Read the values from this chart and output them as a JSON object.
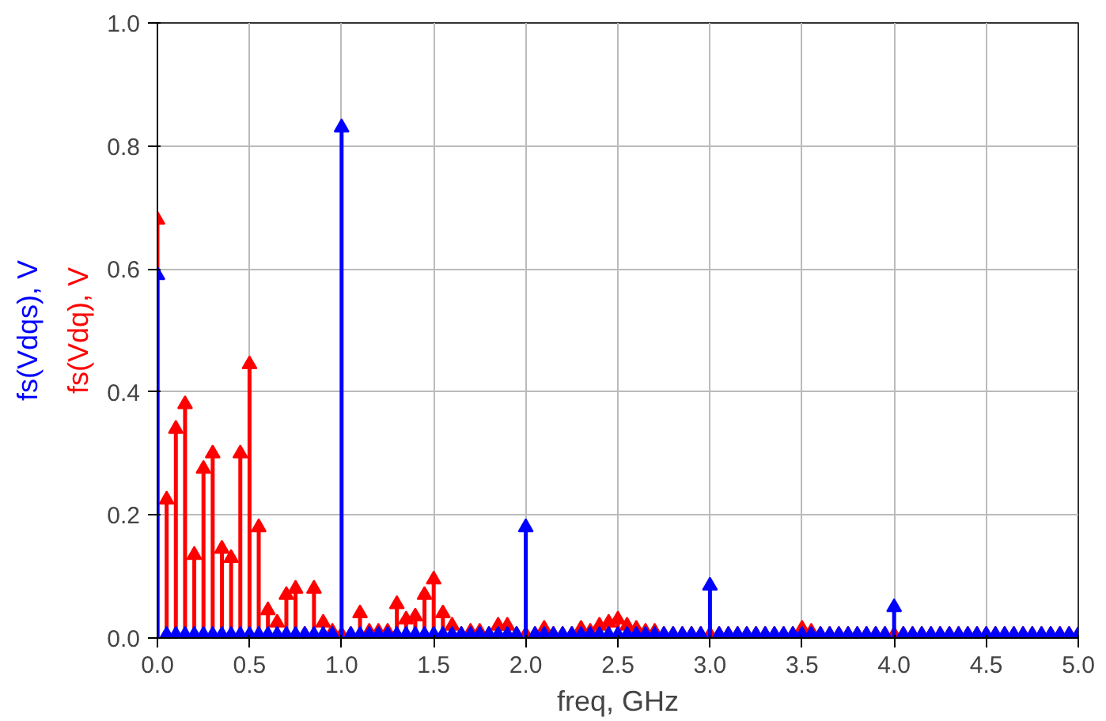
{
  "chart_data": {
    "type": "lollipop",
    "xlabel": "freq, GHz",
    "grid": true,
    "legend": false,
    "marker": "triangle",
    "xlim": [
      0,
      5
    ],
    "ylim": [
      0,
      1
    ],
    "xticks": [
      {
        "value": 0,
        "label": "0.0"
      },
      0.5,
      {
        "value": 1,
        "label": "1.0"
      },
      1.5,
      {
        "value": 2,
        "label": "2.0"
      },
      2.5,
      {
        "value": 3,
        "label": "3.0"
      },
      3.5,
      {
        "value": 4,
        "label": "4.0"
      },
      4.5,
      {
        "value": 5,
        "label": "5.0"
      }
    ],
    "yticks": [
      {
        "value": 0,
        "label": "0.0"
      },
      0.2,
      0.4,
      0.6,
      0.8,
      {
        "value": 1,
        "label": "1.0"
      }
    ],
    "x": [
      0,
      0.05,
      0.1,
      0.15,
      0.2,
      0.25,
      0.3,
      0.35,
      0.4,
      0.45,
      0.5,
      0.55,
      0.6,
      0.65,
      0.7,
      0.75,
      0.8,
      0.85,
      0.9,
      0.95,
      1,
      1.05,
      1.1,
      1.15,
      1.2,
      1.25,
      1.3,
      1.35,
      1.4,
      1.45,
      1.5,
      1.55,
      1.6,
      1.65,
      1.7,
      1.75,
      1.8,
      1.85,
      1.9,
      1.95,
      2,
      2.05,
      2.1,
      2.15,
      2.2,
      2.25,
      2.3,
      2.35,
      2.4,
      2.45,
      2.5,
      2.55,
      2.6,
      2.65,
      2.7,
      2.75,
      2.8,
      2.85,
      2.9,
      2.95,
      3,
      3.05,
      3.1,
      3.15,
      3.2,
      3.25,
      3.3,
      3.35,
      3.4,
      3.45,
      3.5,
      3.55,
      3.6,
      3.65,
      3.7,
      3.75,
      3.8,
      3.85,
      3.9,
      3.95,
      4,
      4.05,
      4.1,
      4.15,
      4.2,
      4.25,
      4.3,
      4.35,
      4.4,
      4.45,
      4.5,
      4.55,
      4.6,
      4.65,
      4.7,
      4.75,
      4.8,
      4.85,
      4.9,
      4.95,
      5
    ],
    "series": [
      {
        "name": "fs(Vdq), V",
        "color": "#ff0000",
        "values": [
          0.68,
          0.225,
          0.34,
          0.38,
          0.135,
          0.275,
          0.3,
          0.145,
          0.13,
          0.3,
          0.445,
          0.18,
          0.045,
          0.025,
          0.07,
          0.08,
          0.005,
          0.08,
          0.025,
          0.01,
          0.005,
          0.005,
          0.04,
          0.01,
          0.01,
          0.01,
          0.055,
          0.03,
          0.035,
          0.07,
          0.095,
          0.04,
          0.02,
          0.005,
          0.01,
          0.01,
          0.005,
          0.02,
          0.02,
          0.005,
          0.005,
          0.005,
          0.015,
          0.005,
          0.005,
          0.005,
          0.015,
          0.01,
          0.02,
          0.025,
          0.03,
          0.02,
          0.015,
          0.01,
          0.01,
          0.005,
          0.005,
          0.005,
          0.005,
          0.005,
          0.005,
          0.005,
          0.005,
          0.005,
          0.005,
          0.005,
          0.005,
          0.005,
          0.005,
          0.005,
          0.015,
          0.01,
          0.005,
          0.005,
          0.005,
          0.005,
          0.005,
          0.005,
          0.005,
          0.005,
          0.005,
          0.005,
          0.005,
          0.005,
          0.005,
          0.005,
          0.005,
          0.005,
          0.005,
          0.005,
          0.005,
          0.005,
          0.005,
          0.005,
          0.005,
          0.005,
          0.005,
          0.005,
          0.005,
          0.005,
          0.005
        ]
      },
      {
        "name": "fs(Vdqs), V",
        "color": "#0000ff",
        "values": [
          0.59,
          0.005,
          0.005,
          0.005,
          0.005,
          0.005,
          0.005,
          0.005,
          0.005,
          0.005,
          0.005,
          0.005,
          0.005,
          0.005,
          0.005,
          0.005,
          0.005,
          0.005,
          0.005,
          0.005,
          0.83,
          0.005,
          0.005,
          0.005,
          0.005,
          0.005,
          0.005,
          0.005,
          0.005,
          0.005,
          0.005,
          0.005,
          0.005,
          0.005,
          0.005,
          0.005,
          0.005,
          0.005,
          0.005,
          0.005,
          0.18,
          0.005,
          0.005,
          0.005,
          0.005,
          0.005,
          0.005,
          0.005,
          0.005,
          0.005,
          0.005,
          0.005,
          0.005,
          0.005,
          0.005,
          0.005,
          0.005,
          0.005,
          0.005,
          0.005,
          0.085,
          0.005,
          0.005,
          0.005,
          0.005,
          0.005,
          0.005,
          0.005,
          0.005,
          0.005,
          0.005,
          0.005,
          0.005,
          0.005,
          0.005,
          0.005,
          0.005,
          0.005,
          0.005,
          0.005,
          0.05,
          0.005,
          0.005,
          0.005,
          0.005,
          0.005,
          0.005,
          0.005,
          0.005,
          0.005,
          0.005,
          0.005,
          0.005,
          0.005,
          0.005,
          0.005,
          0.005,
          0.005,
          0.005,
          0.005,
          0.005
        ]
      }
    ]
  }
}
